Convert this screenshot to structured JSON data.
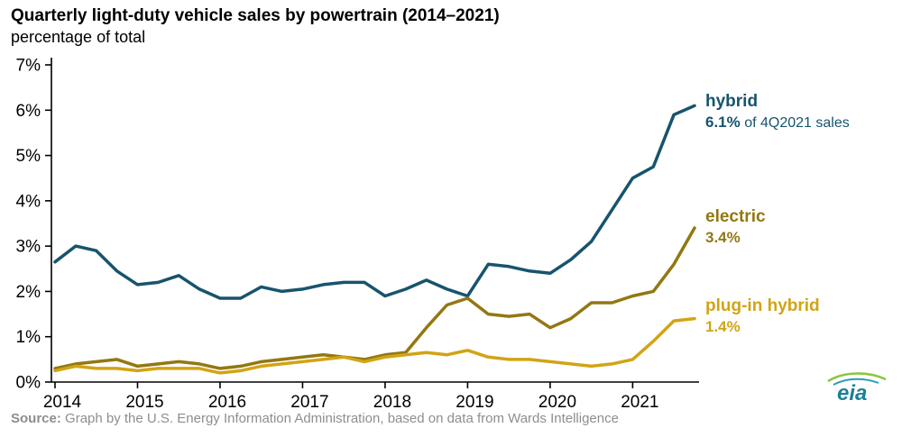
{
  "header": {
    "title": "Quarterly light-duty vehicle sales by powertrain (2014–2021)",
    "subtitle": "percentage of total"
  },
  "chart_data": {
    "type": "line",
    "title": "Quarterly light-duty vehicle sales by powertrain (2014–2021)",
    "ylabel": "percentage of total",
    "xlabel": "",
    "grid": false,
    "legend_position": "right-inline-annotations",
    "ylim": [
      0,
      7
    ],
    "x_unit": "quarter",
    "x_ticks": [
      "2014",
      "2015",
      "2016",
      "2017",
      "2018",
      "2019",
      "2020",
      "2021"
    ],
    "y_ticks": [
      "0%",
      "1%",
      "2%",
      "3%",
      "4%",
      "5%",
      "6%",
      "7%"
    ],
    "x_quarters": [
      "2014Q1",
      "2014Q2",
      "2014Q3",
      "2014Q4",
      "2015Q1",
      "2015Q2",
      "2015Q3",
      "2015Q4",
      "2016Q1",
      "2016Q2",
      "2016Q3",
      "2016Q4",
      "2017Q1",
      "2017Q2",
      "2017Q3",
      "2017Q4",
      "2018Q1",
      "2018Q2",
      "2018Q3",
      "2018Q4",
      "2019Q1",
      "2019Q2",
      "2019Q3",
      "2019Q4",
      "2020Q1",
      "2020Q2",
      "2020Q3",
      "2020Q4",
      "2021Q1",
      "2021Q2",
      "2021Q3",
      "2021Q4"
    ],
    "series": [
      {
        "name": "hybrid",
        "color": "#17546d",
        "values": [
          2.65,
          3.0,
          2.9,
          2.45,
          2.15,
          2.2,
          2.35,
          2.05,
          1.85,
          1.85,
          2.1,
          2.0,
          2.05,
          2.15,
          2.2,
          2.2,
          1.9,
          2.05,
          2.25,
          2.05,
          1.9,
          2.6,
          2.55,
          2.45,
          2.4,
          2.7,
          3.1,
          3.8,
          4.5,
          4.75,
          5.9,
          6.1
        ]
      },
      {
        "name": "electric",
        "color": "#937712",
        "values": [
          0.3,
          0.4,
          0.45,
          0.5,
          0.35,
          0.4,
          0.45,
          0.4,
          0.3,
          0.35,
          0.45,
          0.5,
          0.55,
          0.6,
          0.55,
          0.5,
          0.6,
          0.65,
          1.2,
          1.7,
          1.85,
          1.5,
          1.45,
          1.5,
          1.2,
          1.4,
          1.75,
          1.75,
          1.9,
          2.0,
          2.6,
          3.4
        ]
      },
      {
        "name": "plug-in hybrid",
        "color": "#d2a414",
        "values": [
          0.25,
          0.35,
          0.3,
          0.3,
          0.25,
          0.3,
          0.3,
          0.3,
          0.2,
          0.25,
          0.35,
          0.4,
          0.45,
          0.5,
          0.55,
          0.45,
          0.55,
          0.6,
          0.65,
          0.6,
          0.7,
          0.55,
          0.5,
          0.5,
          0.45,
          0.4,
          0.35,
          0.4,
          0.5,
          0.9,
          1.35,
          1.4
        ]
      }
    ]
  },
  "annotations": [
    {
      "label": "hybrid",
      "value": "6.1%",
      "suffix": " of 4Q2021 sales",
      "color": "#17546d"
    },
    {
      "label": "electric",
      "value": "3.4%",
      "suffix": "",
      "color": "#937712"
    },
    {
      "label": "plug-in hybrid",
      "value": "1.4%",
      "suffix": "",
      "color": "#d2a414"
    }
  ],
  "footer": {
    "source_label": "Source:",
    "source_text": " Graph by the U.S. Energy Information Administration, based on data from Wards Intelligence",
    "logo_text": "eia"
  },
  "colors": {
    "axis": "#000000",
    "source_text": "#8e8e8e",
    "logo_teal": "#1d7f98",
    "logo_green": "#8cc63f"
  }
}
